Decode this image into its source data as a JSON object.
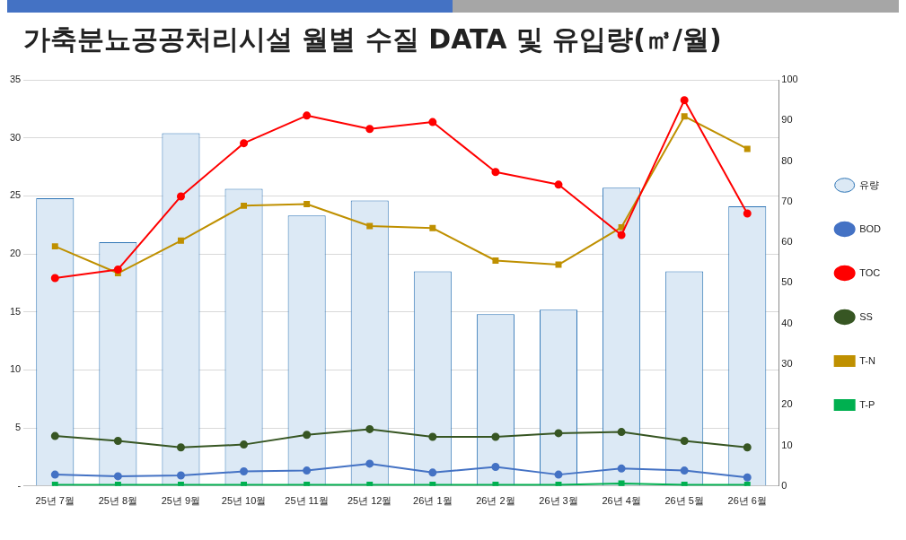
{
  "chart_data": {
    "type": "bar",
    "title": "가축분뇨공공처리시설 월별 수질 DATA 및 유입량(㎥/월)",
    "categories": [
      "25년 7월",
      "25년 8월",
      "25년 9월",
      "25년 10월",
      "25년 11월",
      "25년 12월",
      "26년 1월",
      "26년 2월",
      "26년 3월",
      "26년 4월",
      "26년 5월",
      "26년 6월"
    ],
    "series": [
      {
        "name": "유량",
        "color": "#dce9f5",
        "values": [
          24.8,
          21.0,
          30.4,
          25.6,
          23.3,
          24.6,
          18.5,
          14.8,
          15.2,
          25.7,
          18.5,
          24.1
        ]
      },
      {
        "name": "BOD",
        "type": "line",
        "axis": "y2",
        "marker": "circle",
        "color": "#4472c4",
        "values": [
          2.8,
          2.4,
          2.6,
          3.6,
          3.8,
          5.5,
          3.3,
          4.7,
          2.8,
          4.3,
          3.8,
          2.1
        ]
      },
      {
        "name": "TOC",
        "type": "line",
        "axis": "y2",
        "marker": "circle",
        "color": "#ff0000",
        "values": [
          51.2,
          53.3,
          71.3,
          84.4,
          91.2,
          87.9,
          89.6,
          77.3,
          74.2,
          61.8,
          95.0,
          67.1
        ]
      },
      {
        "name": "SS",
        "type": "line",
        "axis": "y2",
        "marker": "circle",
        "color": "#375623",
        "values": [
          12.3,
          11.1,
          9.5,
          10.2,
          12.6,
          14.0,
          12.1,
          12.1,
          13.0,
          13.3,
          11.1,
          9.5
        ]
      },
      {
        "name": "T-N",
        "type": "line",
        "axis": "y2",
        "marker": "square",
        "color": "#bf9000",
        "values": [
          59.0,
          52.4,
          60.4,
          69.0,
          69.4,
          64.0,
          63.5,
          55.5,
          54.5,
          63.7,
          91.0,
          83.0
        ]
      },
      {
        "name": "T-P",
        "type": "line",
        "axis": "y2",
        "marker": "square",
        "color": "#00b050",
        "values": [
          0.3,
          0.3,
          0.3,
          0.3,
          0.3,
          0.3,
          0.3,
          0.3,
          0.3,
          0.6,
          0.3,
          0.3
        ]
      }
    ],
    "ylim": [
      0,
      35
    ],
    "yticks": [
      {
        "value": 0,
        "label": "-"
      },
      5,
      10,
      15,
      20,
      25,
      30,
      35
    ],
    "y2lim": [
      0,
      100
    ],
    "y2ticks": [
      0,
      10,
      20,
      30,
      40,
      50,
      60,
      70,
      80,
      90,
      100
    ],
    "grid": "y",
    "legend": "right"
  }
}
